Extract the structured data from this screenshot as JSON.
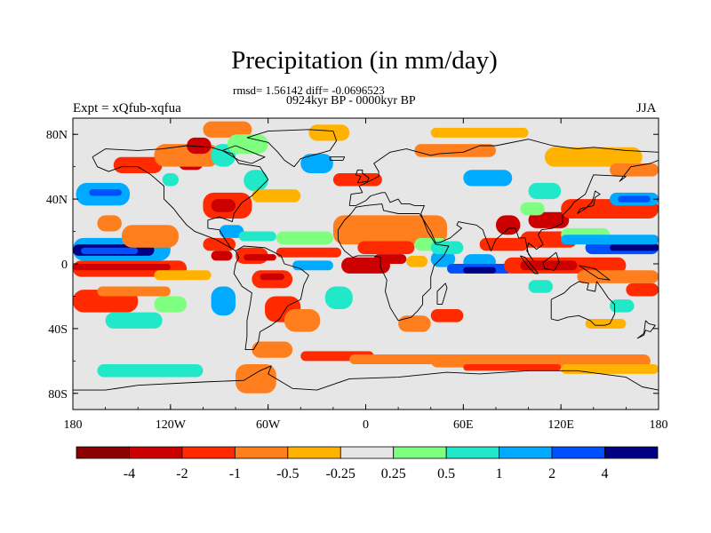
{
  "chart_data": {
    "type": "heatmap",
    "title": "Precipitation (in mm/day)",
    "stats_line": "rmsd= 1.56142 diff= -0.0696523",
    "period_label": "0924kyr BP - 0000kyr BP",
    "experiment_label": "Expt = xQfub-xqfua",
    "season_label": "JJA",
    "statistics": {
      "rmsd": 1.56142,
      "diff": -0.0696523
    },
    "xlim": [
      -180,
      180
    ],
    "ylim": [
      -90,
      90
    ],
    "x_ticks": [
      {
        "value": -180,
        "label": "180"
      },
      {
        "value": -120,
        "label": "120W"
      },
      {
        "value": -60,
        "label": "60W"
      },
      {
        "value": 0,
        "label": "0"
      },
      {
        "value": 60,
        "label": "60E"
      },
      {
        "value": 120,
        "label": "120E"
      },
      {
        "value": 180,
        "label": "180"
      }
    ],
    "y_ticks": [
      {
        "value": 80,
        "label": "80N"
      },
      {
        "value": 40,
        "label": "40N"
      },
      {
        "value": 0,
        "label": "0"
      },
      {
        "value": -40,
        "label": "40S"
      },
      {
        "value": -80,
        "label": "80S"
      }
    ],
    "colorbar": {
      "levels": [
        "-4",
        "-2",
        "-1",
        "-0.5",
        "-0.25",
        "0.25",
        "0.5",
        "1",
        "2",
        "4"
      ],
      "colors": [
        "#8b0000",
        "#cc0000",
        "#ff2a00",
        "#ff7f1f",
        "#ffb300",
        "#e6e6e6",
        "#7fff7f",
        "#20e8c8",
        "#00aaff",
        "#0050ff",
        "#000080"
      ]
    },
    "regions": [
      {
        "lon": [
          -180,
          180
        ],
        "lat": [
          -90,
          90
        ],
        "bin": 5
      },
      {
        "lon": [
          -180,
          -120
        ],
        "lat": [
          2,
          16
        ],
        "bin": 8
      },
      {
        "lon": [
          -180,
          -130
        ],
        "lat": [
          5,
          12
        ],
        "bin": 10
      },
      {
        "lon": [
          -175,
          -140
        ],
        "lat": [
          6,
          10
        ],
        "bin": 9
      },
      {
        "lon": [
          -180,
          -110
        ],
        "lat": [
          -8,
          2
        ],
        "bin": 2
      },
      {
        "lon": [
          -180,
          -120
        ],
        "lat": [
          -4,
          0
        ],
        "bin": 1
      },
      {
        "lon": [
          -130,
          -95
        ],
        "lat": [
          -10,
          -4
        ],
        "bin": 4
      },
      {
        "lon": [
          -180,
          -140
        ],
        "lat": [
          -30,
          -16
        ],
        "bin": 2
      },
      {
        "lon": [
          -165,
          -120
        ],
        "lat": [
          -20,
          -14
        ],
        "bin": 3
      },
      {
        "lon": [
          -160,
          -125
        ],
        "lat": [
          -40,
          -30
        ],
        "bin": 7
      },
      {
        "lon": [
          -130,
          -110
        ],
        "lat": [
          -30,
          -20
        ],
        "bin": 6
      },
      {
        "lon": [
          -150,
          -115
        ],
        "lat": [
          10,
          24
        ],
        "bin": 3
      },
      {
        "lon": [
          -165,
          -150
        ],
        "lat": [
          20,
          30
        ],
        "bin": 3
      },
      {
        "lon": [
          -178,
          -145
        ],
        "lat": [
          36,
          50
        ],
        "bin": 8
      },
      {
        "lon": [
          -170,
          -150
        ],
        "lat": [
          42,
          46
        ],
        "bin": 9
      },
      {
        "lon": [
          -155,
          -125
        ],
        "lat": [
          56,
          66
        ],
        "bin": 2
      },
      {
        "lon": [
          -115,
          -100
        ],
        "lat": [
          58,
          66
        ],
        "bin": 1
      },
      {
        "lon": [
          -130,
          -90
        ],
        "lat": [
          60,
          74
        ],
        "bin": 3
      },
      {
        "lon": [
          -110,
          -95
        ],
        "lat": [
          68,
          78
        ],
        "bin": 1
      },
      {
        "lon": [
          -125,
          -115
        ],
        "lat": [
          48,
          56
        ],
        "bin": 7
      },
      {
        "lon": [
          -95,
          -80
        ],
        "lat": [
          60,
          74
        ],
        "bin": 7
      },
      {
        "lon": [
          -100,
          -70
        ],
        "lat": [
          78,
          88
        ],
        "bin": 3
      },
      {
        "lon": [
          -85,
          -60
        ],
        "lat": [
          68,
          80
        ],
        "bin": 6
      },
      {
        "lon": [
          -75,
          -60
        ],
        "lat": [
          45,
          58
        ],
        "bin": 7
      },
      {
        "lon": [
          -100,
          -70
        ],
        "lat": [
          28,
          44
        ],
        "bin": 2
      },
      {
        "lon": [
          -95,
          -80
        ],
        "lat": [
          32,
          40
        ],
        "bin": 1
      },
      {
        "lon": [
          -70,
          -40
        ],
        "lat": [
          38,
          46
        ],
        "bin": 4
      },
      {
        "lon": [
          -90,
          -75
        ],
        "lat": [
          16,
          24
        ],
        "bin": 8
      },
      {
        "lon": [
          -78,
          -55
        ],
        "lat": [
          14,
          20
        ],
        "bin": 7
      },
      {
        "lon": [
          -100,
          -80
        ],
        "lat": [
          8,
          16
        ],
        "bin": 2
      },
      {
        "lon": [
          -95,
          -82
        ],
        "lat": [
          2,
          8
        ],
        "bin": 1
      },
      {
        "lon": [
          -80,
          -60
        ],
        "lat": [
          0,
          10
        ],
        "bin": 2
      },
      {
        "lon": [
          -75,
          -55
        ],
        "lat": [
          2,
          6
        ],
        "bin": 1
      },
      {
        "lon": [
          -70,
          -45
        ],
        "lat": [
          -15,
          -4
        ],
        "bin": 2
      },
      {
        "lon": [
          -65,
          -50
        ],
        "lat": [
          -10,
          -6
        ],
        "bin": 1
      },
      {
        "lon": [
          -95,
          -80
        ],
        "lat": [
          -32,
          -14
        ],
        "bin": 8
      },
      {
        "lon": [
          -62,
          -40
        ],
        "lat": [
          -36,
          -20
        ],
        "bin": 2
      },
      {
        "lon": [
          -50,
          -28
        ],
        "lat": [
          -42,
          -28
        ],
        "bin": 3
      },
      {
        "lon": [
          -25,
          -8
        ],
        "lat": [
          -28,
          -14
        ],
        "bin": 7
      },
      {
        "lon": [
          -55,
          -15
        ],
        "lat": [
          4,
          10
        ],
        "bin": 2
      },
      {
        "lon": [
          -45,
          -20
        ],
        "lat": [
          -4,
          2
        ],
        "bin": 8
      },
      {
        "lon": [
          -55,
          -20
        ],
        "lat": [
          12,
          20
        ],
        "bin": 6
      },
      {
        "lon": [
          -80,
          -55
        ],
        "lat": [
          -80,
          -62
        ],
        "bin": 3
      },
      {
        "lon": [
          -70,
          -45
        ],
        "lat": [
          -58,
          -48
        ],
        "bin": 3
      },
      {
        "lon": [
          -40,
          5
        ],
        "lat": [
          -60,
          -54
        ],
        "bin": 2
      },
      {
        "lon": [
          -10,
          60
        ],
        "lat": [
          -62,
          -56
        ],
        "bin": 3
      },
      {
        "lon": [
          -165,
          -100
        ],
        "lat": [
          -70,
          -62
        ],
        "bin": 7
      },
      {
        "lon": [
          40,
          175
        ],
        "lat": [
          -64,
          -56
        ],
        "bin": 3
      },
      {
        "lon": [
          60,
          120
        ],
        "lat": [
          -66,
          -62
        ],
        "bin": 2
      },
      {
        "lon": [
          120,
          180
        ],
        "lat": [
          -68,
          -62
        ],
        "bin": 4
      },
      {
        "lon": [
          20,
          40
        ],
        "lat": [
          -42,
          -32
        ],
        "bin": 3
      },
      {
        "lon": [
          40,
          60
        ],
        "lat": [
          -36,
          -28
        ],
        "bin": 2
      },
      {
        "lon": [
          -40,
          -20
        ],
        "lat": [
          56,
          68
        ],
        "bin": 8
      },
      {
        "lon": [
          -20,
          10
        ],
        "lat": [
          48,
          56
        ],
        "bin": 2
      },
      {
        "lon": [
          -35,
          -10
        ],
        "lat": [
          76,
          86
        ],
        "bin": 4
      },
      {
        "lon": [
          30,
          80
        ],
        "lat": [
          66,
          74
        ],
        "bin": 3
      },
      {
        "lon": [
          40,
          100
        ],
        "lat": [
          78,
          84
        ],
        "bin": 4
      },
      {
        "lon": [
          60,
          90
        ],
        "lat": [
          48,
          58
        ],
        "bin": 8
      },
      {
        "lon": [
          110,
          170
        ],
        "lat": [
          60,
          72
        ],
        "bin": 4
      },
      {
        "lon": [
          150,
          180
        ],
        "lat": [
          54,
          62
        ],
        "bin": 3
      },
      {
        "lon": [
          -20,
          50
        ],
        "lat": [
          12,
          30
        ],
        "bin": 3
      },
      {
        "lon": [
          -5,
          30
        ],
        "lat": [
          6,
          14
        ],
        "bin": 2
      },
      {
        "lon": [
          5,
          25
        ],
        "lat": [
          0,
          6
        ],
        "bin": 1
      },
      {
        "lon": [
          -15,
          15
        ],
        "lat": [
          -6,
          4
        ],
        "bin": 1
      },
      {
        "lon": [
          25,
          38
        ],
        "lat": [
          -2,
          5
        ],
        "bin": 4
      },
      {
        "lon": [
          30,
          50
        ],
        "lat": [
          8,
          16
        ],
        "bin": 6
      },
      {
        "lon": [
          40,
          55
        ],
        "lat": [
          -2,
          8
        ],
        "bin": 8
      },
      {
        "lon": [
          60,
          80
        ],
        "lat": [
          -4,
          6
        ],
        "bin": 8
      },
      {
        "lon": [
          50,
          90
        ],
        "lat": [
          -6,
          0
        ],
        "bin": 9
      },
      {
        "lon": [
          60,
          80
        ],
        "lat": [
          -6,
          -2
        ],
        "bin": 10
      },
      {
        "lon": [
          40,
          60
        ],
        "lat": [
          6,
          14
        ],
        "bin": 7
      },
      {
        "lon": [
          70,
          100
        ],
        "lat": [
          8,
          16
        ],
        "bin": 2
      },
      {
        "lon": [
          80,
          95
        ],
        "lat": [
          18,
          30
        ],
        "bin": 1
      },
      {
        "lon": [
          100,
          125
        ],
        "lat": [
          22,
          32
        ],
        "bin": 1
      },
      {
        "lon": [
          95,
          130
        ],
        "lat": [
          10,
          20
        ],
        "bin": 2
      },
      {
        "lon": [
          120,
          150
        ],
        "lat": [
          14,
          22
        ],
        "bin": 6
      },
      {
        "lon": [
          135,
          180
        ],
        "lat": [
          6,
          14
        ],
        "bin": 9
      },
      {
        "lon": [
          150,
          180
        ],
        "lat": [
          8,
          12
        ],
        "bin": 10
      },
      {
        "lon": [
          120,
          180
        ],
        "lat": [
          12,
          18
        ],
        "bin": 8
      },
      {
        "lon": [
          85,
          160
        ],
        "lat": [
          -6,
          4
        ],
        "bin": 2
      },
      {
        "lon": [
          95,
          130
        ],
        "lat": [
          -4,
          2
        ],
        "bin": 1
      },
      {
        "lon": [
          130,
          180
        ],
        "lat": [
          -12,
          -4
        ],
        "bin": 3
      },
      {
        "lon": [
          160,
          180
        ],
        "lat": [
          -20,
          -12
        ],
        "bin": 2
      },
      {
        "lon": [
          100,
          115
        ],
        "lat": [
          -18,
          -10
        ],
        "bin": 7
      },
      {
        "lon": [
          150,
          165
        ],
        "lat": [
          -30,
          -22
        ],
        "bin": 7
      },
      {
        "lon": [
          120,
          180
        ],
        "lat": [
          28,
          40
        ],
        "bin": 2
      },
      {
        "lon": [
          150,
          180
        ],
        "lat": [
          36,
          44
        ],
        "bin": 8
      },
      {
        "lon": [
          155,
          175
        ],
        "lat": [
          38,
          42
        ],
        "bin": 9
      },
      {
        "lon": [
          135,
          160
        ],
        "lat": [
          -40,
          -34
        ],
        "bin": 4
      },
      {
        "lon": [
          100,
          120
        ],
        "lat": [
          40,
          50
        ],
        "bin": 7
      },
      {
        "lon": [
          95,
          110
        ],
        "lat": [
          30,
          38
        ],
        "bin": 6
      }
    ]
  }
}
